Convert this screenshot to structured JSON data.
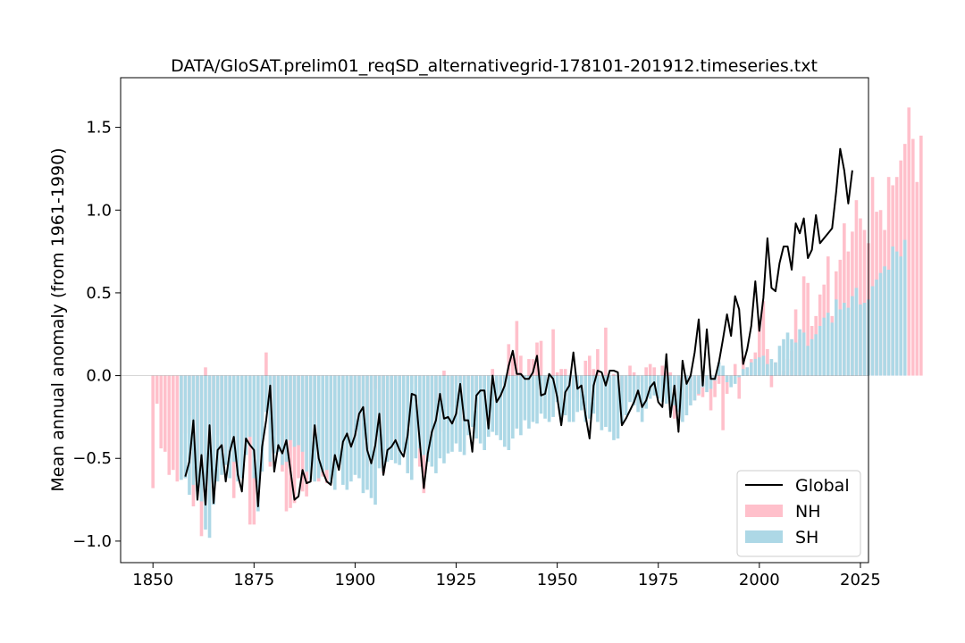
{
  "chart_data": {
    "type": "bar",
    "title": "DATA/GloSAT.prelim01_reqSD_alternativegrid-178101-201912.timeseries.txt",
    "xlabel": "",
    "ylabel": "Mean annual anomaly (from 1961-1990)",
    "xlim": [
      1842,
      2027
    ],
    "ylim": [
      -1.13,
      1.8
    ],
    "x_ticks": [
      1850,
      1875,
      1900,
      1925,
      1950,
      1975,
      2000,
      2025
    ],
    "x_tick_labels": [
      "1850",
      "1875",
      "1900",
      "1925",
      "1950",
      "1975",
      "2000",
      "2025"
    ],
    "y_ticks": [
      -1.0,
      -0.5,
      0.0,
      0.5,
      1.0,
      1.5
    ],
    "y_tick_labels": [
      "−1.0",
      "−0.5",
      "0.0",
      "0.5",
      "1.0",
      "1.5"
    ],
    "grid": false,
    "legend_position": "bottom-right",
    "colors": {
      "NH": "#ffc0cb",
      "SH": "#add8e6",
      "Global": "#000000"
    },
    "series": [
      {
        "name": "NH",
        "type": "bar",
        "x_start": 1850,
        "values": [
          -0.68,
          -0.17,
          -0.44,
          -0.46,
          -0.6,
          -0.57,
          -0.64,
          -0.48,
          -0.35,
          -0.24,
          -0.79,
          -0.58,
          -0.97,
          0.05,
          -0.68,
          -0.46,
          -0.36,
          -0.53,
          -0.49,
          -0.3,
          -0.74,
          -0.42,
          -0.41,
          -0.4,
          -0.9,
          -0.9,
          -0.52,
          -0.25,
          0.14,
          -0.55,
          -0.33,
          -0.36,
          -0.58,
          -0.82,
          -0.8,
          -0.77,
          -0.62,
          -0.7,
          -0.73,
          -0.25,
          -0.37,
          -0.64,
          -0.61,
          -0.65,
          -0.58,
          -0.4,
          -0.43,
          -0.34,
          -0.35,
          -0.3,
          -0.4,
          -0.33,
          -0.49,
          -0.55,
          -0.33,
          -0.08,
          -0.4,
          -0.59,
          -0.4,
          -0.35,
          -0.39,
          -0.45,
          -0.42,
          -0.3,
          -0.05,
          -0.07,
          -0.55,
          -0.71,
          -0.4,
          -0.37,
          -0.15,
          -0.34,
          0.03,
          -0.19,
          -0.19,
          -0.05,
          -0.04,
          -0.32,
          -0.02,
          -0.1,
          -0.18,
          -0.08,
          -0.13,
          -0.03,
          0.04,
          -0.34,
          -0.06,
          -0.05,
          0.19,
          0.11,
          0.33,
          0.12,
          -0.01,
          0.1,
          0.1,
          0.2,
          0.21,
          -0.03,
          0.0,
          0.28,
          0.02,
          0.04,
          0.04,
          -0.15,
          -0.14,
          -0.13,
          -0.08,
          0.09,
          0.12,
          0.04,
          0.16,
          0.0,
          0.29,
          0.0,
          0.01,
          0.0,
          -0.1,
          -0.15,
          0.06,
          0.02,
          -0.19,
          -0.04,
          0.05,
          0.07,
          0.05,
          -0.04,
          0.06,
          0.03,
          0.02,
          -0.26,
          -0.22,
          -0.2,
          -0.14,
          -0.09,
          -0.15,
          -0.12,
          -0.13,
          -0.06,
          -0.21,
          -0.13,
          -0.05,
          -0.33,
          -0.11,
          -0.04,
          0.07,
          -0.14,
          0.12,
          0.05,
          0.1,
          0.14,
          0.34,
          0.45,
          0.16,
          -0.07,
          0.08,
          0.01,
          0.03,
          0.1,
          0.15,
          0.4,
          0.22,
          0.6,
          0.56,
          0.3,
          0.36,
          0.49,
          0.55,
          0.72,
          0.36,
          0.63,
          0.7,
          0.92,
          0.75,
          0.87,
          1.06,
          0.95,
          0.88,
          0.8,
          1.2,
          0.99,
          1.0,
          0.88,
          1.2,
          1.15,
          1.2,
          1.3,
          1.4,
          1.62,
          1.43,
          1.17,
          1.45
        ]
      },
      {
        "name": "SH",
        "type": "bar",
        "x_start": 1850,
        "values": [
          0,
          0,
          0,
          0,
          0,
          0,
          0,
          -0.63,
          -0.62,
          -0.72,
          -0.66,
          -0.7,
          -0.76,
          -0.93,
          -0.98,
          -0.78,
          -0.64,
          -0.6,
          -0.54,
          -0.62,
          -0.52,
          -0.64,
          -0.62,
          -0.48,
          -0.37,
          -0.62,
          -0.82,
          -0.58,
          -0.22,
          -0.52,
          -0.47,
          -0.46,
          -0.54,
          -0.52,
          -0.39,
          -0.43,
          -0.42,
          -0.46,
          -0.58,
          -0.63,
          -0.64,
          -0.62,
          -0.58,
          -0.57,
          -0.65,
          -0.69,
          -0.54,
          -0.66,
          -0.69,
          -0.64,
          -0.6,
          -0.62,
          -0.71,
          -0.69,
          -0.74,
          -0.78,
          -0.56,
          -0.58,
          -0.52,
          -0.51,
          -0.53,
          -0.54,
          -0.46,
          -0.59,
          -0.63,
          -0.5,
          -0.44,
          -0.48,
          -0.52,
          -0.55,
          -0.59,
          -0.5,
          -0.53,
          -0.47,
          -0.46,
          -0.41,
          -0.46,
          -0.48,
          -0.36,
          -0.31,
          -0.38,
          -0.41,
          -0.45,
          -0.37,
          -0.34,
          -0.36,
          -0.39,
          -0.43,
          -0.45,
          -0.38,
          -0.32,
          -0.36,
          -0.27,
          -0.32,
          -0.28,
          -0.29,
          -0.23,
          -0.26,
          -0.28,
          -0.25,
          -0.16,
          -0.28,
          -0.24,
          -0.28,
          -0.28,
          -0.22,
          -0.21,
          -0.28,
          -0.26,
          -0.23,
          -0.28,
          -0.33,
          -0.31,
          -0.34,
          -0.39,
          -0.38,
          -0.29,
          -0.24,
          -0.16,
          -0.18,
          -0.22,
          -0.28,
          -0.2,
          -0.14,
          -0.12,
          -0.14,
          -0.16,
          -0.17,
          -0.21,
          -0.18,
          -0.22,
          -0.28,
          -0.24,
          -0.18,
          -0.15,
          -0.11,
          -0.07,
          -0.1,
          -0.08,
          -0.03,
          0.08,
          0.06,
          -0.04,
          -0.07,
          -0.05,
          -0.01,
          0.04,
          0.05,
          0.08,
          0.1,
          0.11,
          0.12,
          0.07,
          0.1,
          0.08,
          0.18,
          0.22,
          0.26,
          0.22,
          0.2,
          0.28,
          0.26,
          0.18,
          0.22,
          0.25,
          0.3,
          0.35,
          0.38,
          0.32,
          0.46,
          0.4,
          0.44,
          0.41,
          0.48,
          0.53,
          0.43,
          0.44,
          0.46,
          0.54,
          0.58,
          0.62,
          0.66,
          0.64,
          0.78,
          0.75,
          0.72,
          0.82
        ]
      },
      {
        "name": "Global",
        "type": "line",
        "x_start": 1858,
        "values": [
          -0.61,
          -0.52,
          -0.27,
          -0.75,
          -0.48,
          -0.78,
          -0.3,
          -0.77,
          -0.45,
          -0.42,
          -0.64,
          -0.46,
          -0.37,
          -0.6,
          -0.7,
          -0.38,
          -0.42,
          -0.45,
          -0.79,
          -0.43,
          -0.27,
          -0.06,
          -0.58,
          -0.42,
          -0.47,
          -0.39,
          -0.57,
          -0.75,
          -0.73,
          -0.57,
          -0.65,
          -0.64,
          -0.3,
          -0.5,
          -0.58,
          -0.64,
          -0.66,
          -0.48,
          -0.57,
          -0.4,
          -0.35,
          -0.43,
          -0.36,
          -0.23,
          -0.19,
          -0.45,
          -0.53,
          -0.42,
          -0.23,
          -0.6,
          -0.45,
          -0.43,
          -0.39,
          -0.45,
          -0.49,
          -0.36,
          -0.11,
          -0.12,
          -0.4,
          -0.68,
          -0.47,
          -0.34,
          -0.27,
          -0.11,
          -0.26,
          -0.25,
          -0.29,
          -0.23,
          -0.05,
          -0.27,
          -0.27,
          -0.46,
          -0.12,
          -0.09,
          -0.09,
          -0.32,
          0.0,
          -0.16,
          -0.12,
          -0.06,
          0.06,
          0.15,
          0.01,
          0.01,
          -0.02,
          -0.02,
          0.02,
          0.12,
          -0.12,
          -0.11,
          0.01,
          -0.02,
          -0.13,
          -0.3,
          -0.1,
          -0.06,
          0.14,
          -0.08,
          -0.06,
          -0.24,
          -0.38,
          -0.06,
          0.03,
          0.02,
          -0.06,
          0.03,
          0.03,
          0.02,
          -0.3,
          -0.26,
          -0.21,
          -0.16,
          -0.09,
          -0.19,
          -0.15,
          -0.07,
          -0.04,
          -0.16,
          -0.19,
          0.13,
          -0.25,
          -0.06,
          -0.34,
          0.09,
          -0.05,
          0.0,
          0.14,
          0.34,
          -0.06,
          0.28,
          -0.02,
          -0.02,
          0.08,
          0.22,
          0.37,
          0.24,
          0.48,
          0.4,
          0.07,
          0.16,
          0.3,
          0.57,
          0.27,
          0.47,
          0.83,
          0.53,
          0.51,
          0.68,
          0.78,
          0.78,
          0.64,
          0.92,
          0.86,
          0.95,
          0.71,
          0.76,
          0.97,
          0.8,
          0.83,
          0.86,
          0.89,
          1.11,
          1.37,
          1.24,
          1.04,
          1.24
        ]
      }
    ]
  }
}
